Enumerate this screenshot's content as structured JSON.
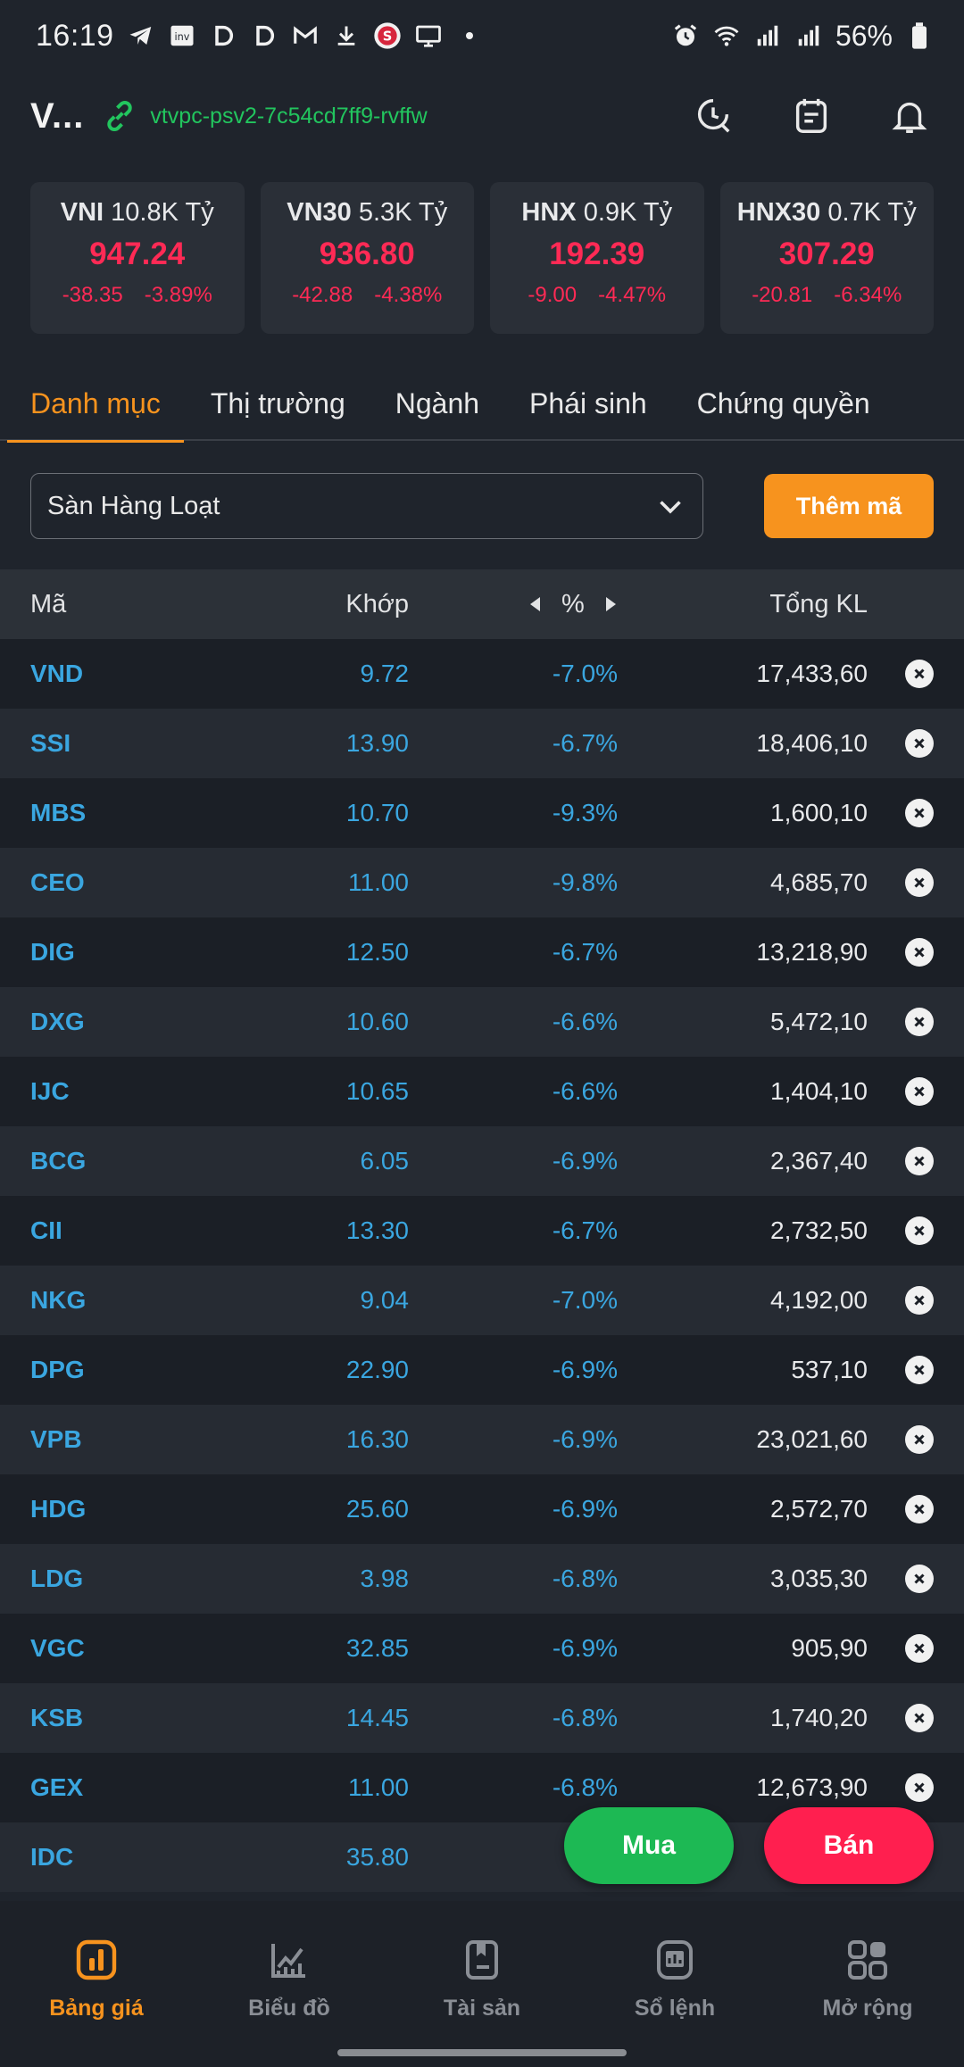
{
  "status_bar": {
    "time": "16:19",
    "battery": "56%"
  },
  "header": {
    "app_title": "V...",
    "server": "vtvpc-psv2-7c54cd7ff9-rvffw"
  },
  "indices": [
    {
      "name": "VNI",
      "turnover": "10.8K Tỷ",
      "value": "947.24",
      "change": "-38.35",
      "percent": "-3.89%"
    },
    {
      "name": "VN30",
      "turnover": "5.3K Tỷ",
      "value": "936.80",
      "change": "-42.88",
      "percent": "-4.38%"
    },
    {
      "name": "HNX",
      "turnover": "0.9K Tỷ",
      "value": "192.39",
      "change": "-9.00",
      "percent": "-4.47%"
    },
    {
      "name": "HNX30",
      "turnover": "0.7K Tỷ",
      "value": "307.29",
      "change": "-20.81",
      "percent": "-6.34%"
    }
  ],
  "tabs": [
    {
      "label": "Danh mục",
      "active": true
    },
    {
      "label": "Thị trường"
    },
    {
      "label": "Ngành"
    },
    {
      "label": "Phái sinh"
    },
    {
      "label": "Chứng quyền"
    }
  ],
  "watchlist": {
    "selected": "Sàn Hàng Loạt",
    "add_label": "Thêm mã"
  },
  "table": {
    "headers": {
      "code": "Mã",
      "price": "Khớp",
      "pct": "%",
      "volume": "Tổng KL"
    },
    "rows": [
      {
        "code": "VND",
        "price": "9.72",
        "pct": "-7.0%",
        "volume": "17,433,60"
      },
      {
        "code": "SSI",
        "price": "13.90",
        "pct": "-6.7%",
        "volume": "18,406,10"
      },
      {
        "code": "MBS",
        "price": "10.70",
        "pct": "-9.3%",
        "volume": "1,600,10"
      },
      {
        "code": "CEO",
        "price": "11.00",
        "pct": "-9.8%",
        "volume": "4,685,70"
      },
      {
        "code": "DIG",
        "price": "12.50",
        "pct": "-6.7%",
        "volume": "13,218,90"
      },
      {
        "code": "DXG",
        "price": "10.60",
        "pct": "-6.6%",
        "volume": "5,472,10"
      },
      {
        "code": "IJC",
        "price": "10.65",
        "pct": "-6.6%",
        "volume": "1,404,10"
      },
      {
        "code": "BCG",
        "price": "6.05",
        "pct": "-6.9%",
        "volume": "2,367,40"
      },
      {
        "code": "CII",
        "price": "13.30",
        "pct": "-6.7%",
        "volume": "2,732,50"
      },
      {
        "code": "NKG",
        "price": "9.04",
        "pct": "-7.0%",
        "volume": "4,192,00"
      },
      {
        "code": "DPG",
        "price": "22.90",
        "pct": "-6.9%",
        "volume": "537,10"
      },
      {
        "code": "VPB",
        "price": "16.30",
        "pct": "-6.9%",
        "volume": "23,021,60"
      },
      {
        "code": "HDG",
        "price": "25.60",
        "pct": "-6.9%",
        "volume": "2,572,70"
      },
      {
        "code": "LDG",
        "price": "3.98",
        "pct": "-6.8%",
        "volume": "3,035,30"
      },
      {
        "code": "VGC",
        "price": "32.85",
        "pct": "-6.9%",
        "volume": "905,90"
      },
      {
        "code": "KSB",
        "price": "14.45",
        "pct": "-6.8%",
        "volume": "1,740,20"
      },
      {
        "code": "GEX",
        "price": "11.00",
        "pct": "-6.8%",
        "volume": "12,673,90"
      },
      {
        "code": "IDC",
        "price": "35.80",
        "pct": "-",
        "volume": ""
      }
    ]
  },
  "actions": {
    "buy": "Mua",
    "sell": "Bán"
  },
  "bottom_nav": [
    {
      "label": "Bảng giá",
      "icon": "price-board-icon",
      "active": true
    },
    {
      "label": "Biểu đồ",
      "icon": "chart-icon"
    },
    {
      "label": "Tài sản",
      "icon": "asset-icon"
    },
    {
      "label": "Sổ lệnh",
      "icon": "order-book-icon"
    },
    {
      "label": "Mở rộng",
      "icon": "grid-icon"
    }
  ],
  "colors": {
    "accent": "#f7931e",
    "down": "#ff2a55",
    "ticker": "#3aa6e0",
    "server": "#22c55e",
    "buy": "#1db954",
    "sell": "#ff1f4f"
  }
}
